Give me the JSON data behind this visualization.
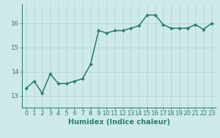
{
  "x": [
    0,
    1,
    2,
    3,
    4,
    5,
    6,
    7,
    8,
    9,
    10,
    11,
    12,
    13,
    14,
    15,
    16,
    17,
    18,
    19,
    20,
    21,
    22,
    23
  ],
  "y": [
    13.3,
    13.6,
    13.1,
    13.9,
    13.5,
    13.5,
    13.6,
    13.7,
    14.3,
    15.7,
    15.6,
    15.7,
    15.7,
    15.8,
    15.9,
    16.35,
    16.35,
    15.95,
    15.8,
    15.8,
    15.8,
    15.95,
    15.75,
    16.0
  ],
  "line_color": "#2d7d6e",
  "marker": "D",
  "marker_size": 2.5,
  "bg_color": "#ceeae8",
  "grid_color": "#b0d4d0",
  "xlabel": "Humidex (Indice chaleur)",
  "xlabel_fontsize": 7.5,
  "yticks": [
    13,
    14,
    15,
    16
  ],
  "ylim": [
    12.5,
    16.8
  ],
  "xlim": [
    -0.5,
    23.5
  ],
  "tick_fontsize": 6.5,
  "line_width": 1.2
}
